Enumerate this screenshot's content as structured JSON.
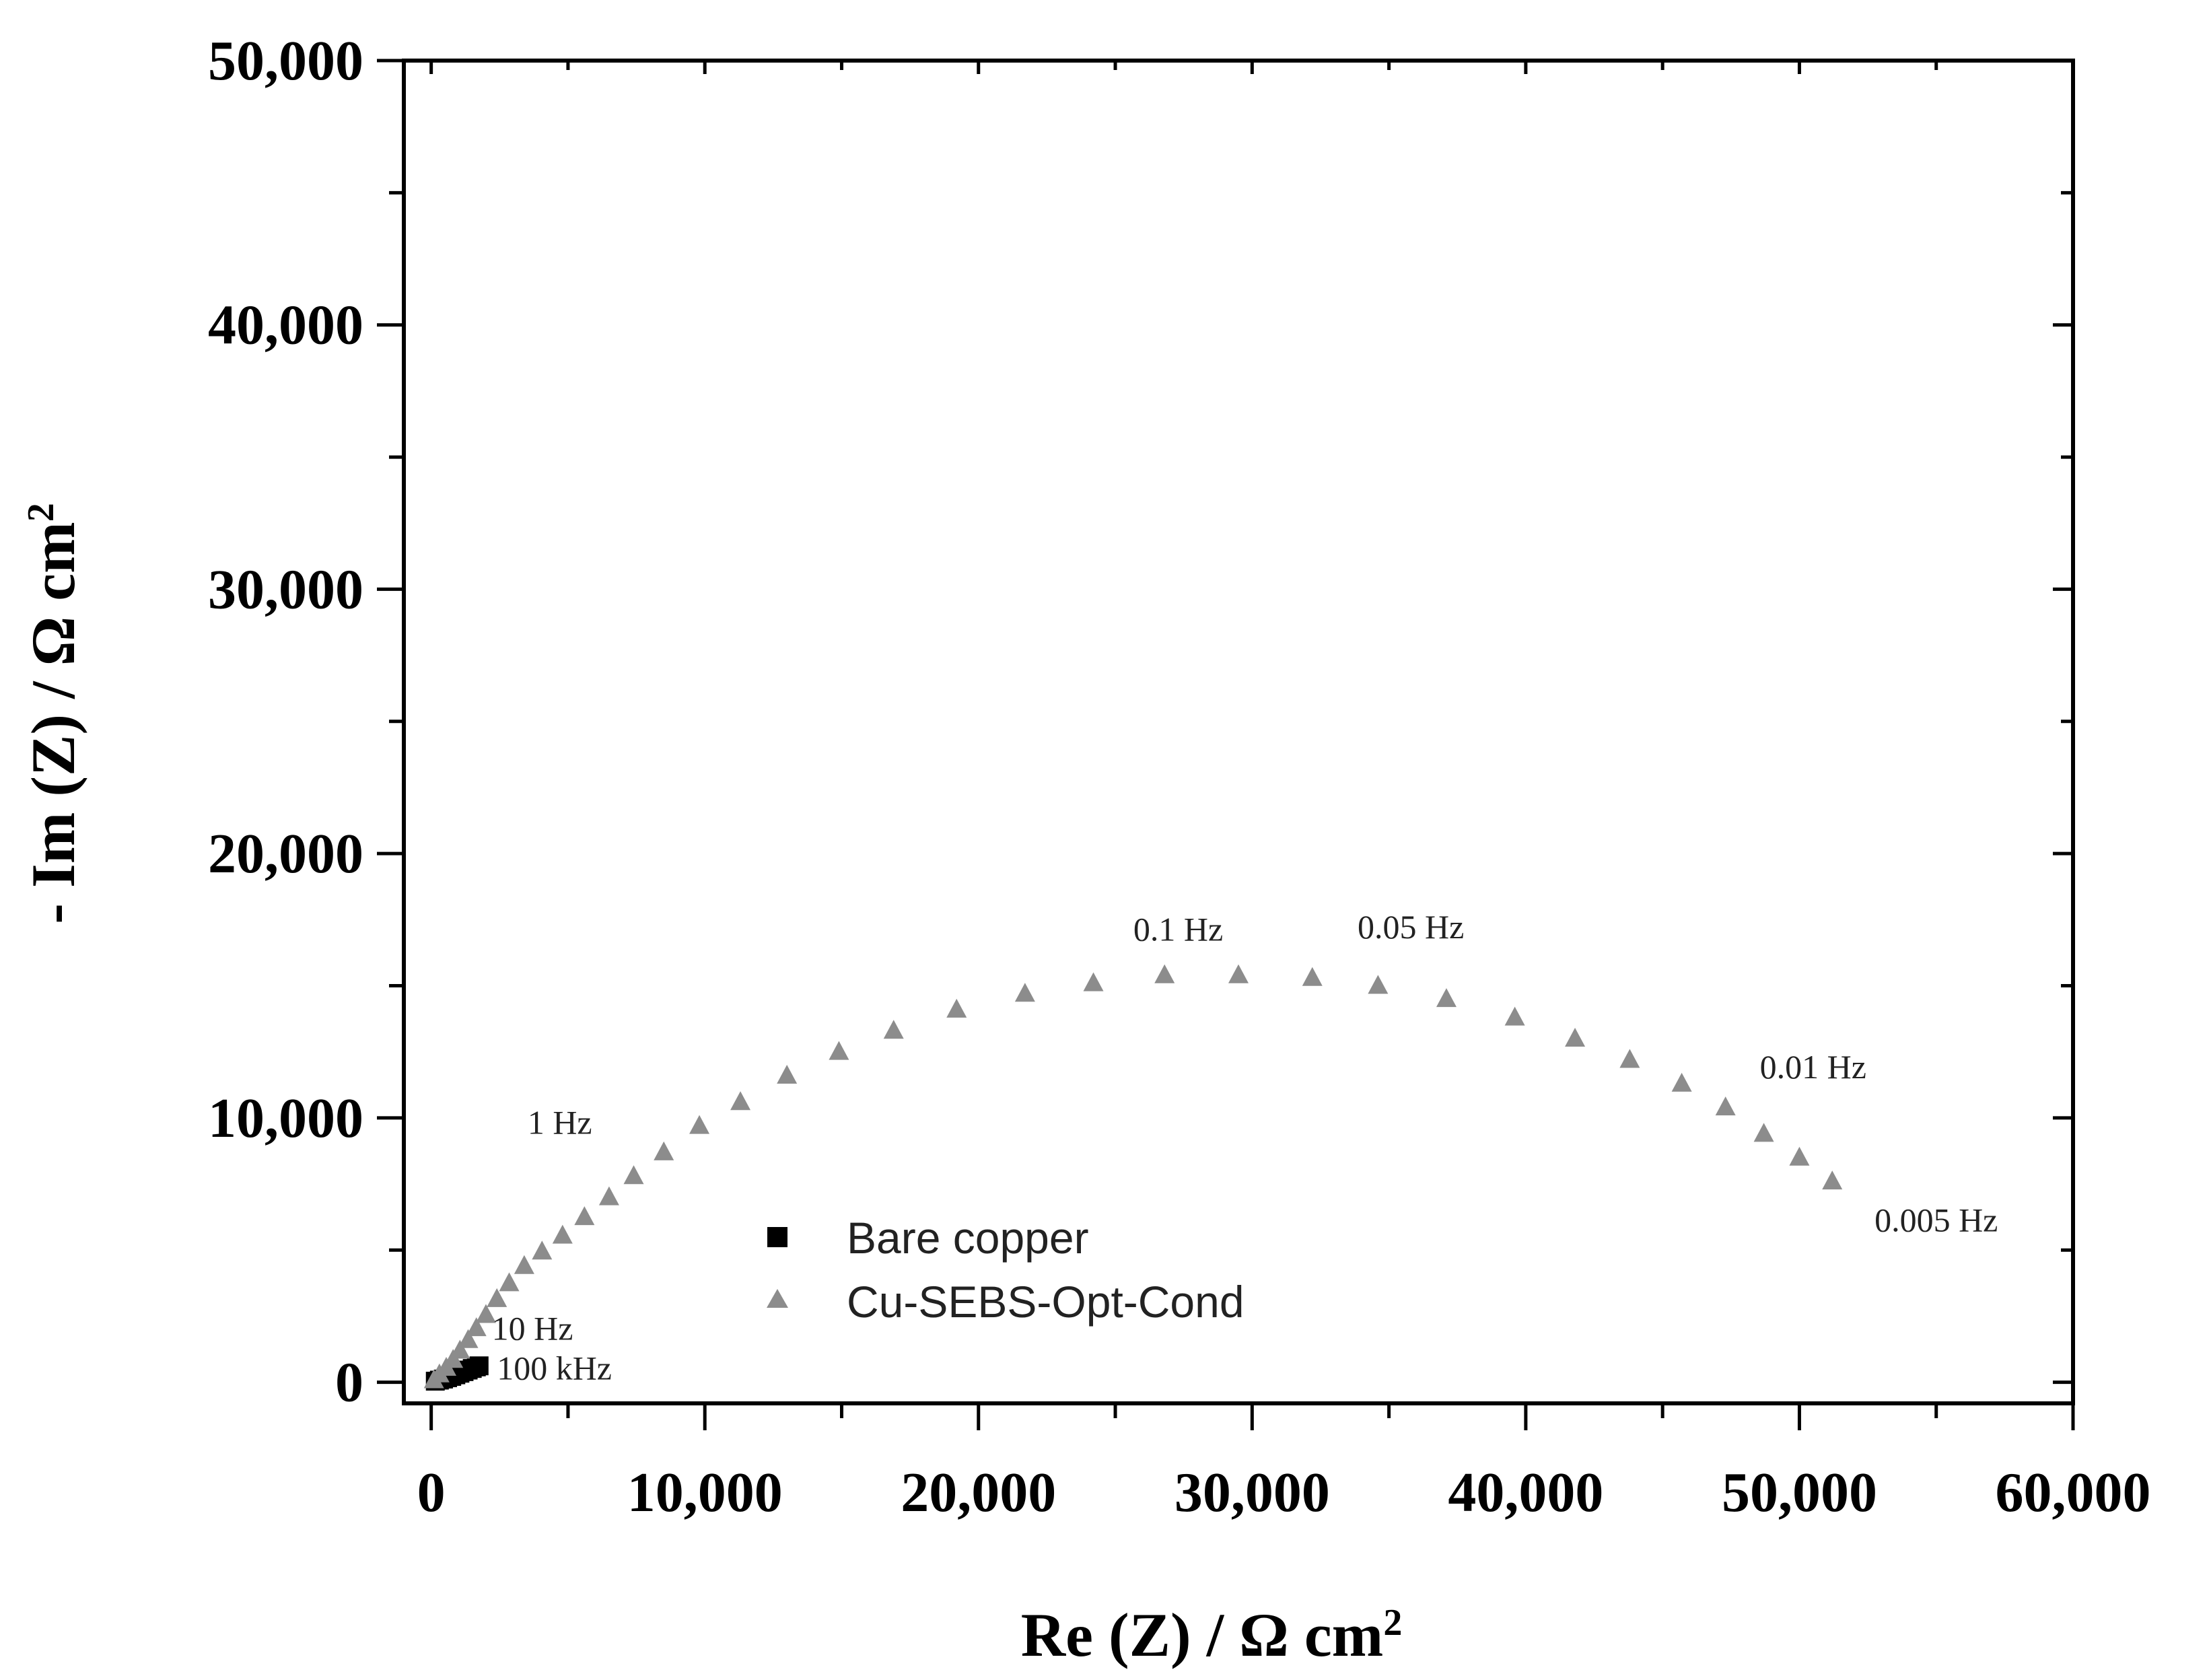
{
  "chart_data": {
    "type": "scatter",
    "title": "",
    "xlabel": "Re (Z) / Ω cm",
    "xlabel_sup": "2",
    "ylabel": "- Im (Z) / Ω cm",
    "ylabel_sup": "2",
    "xlim": [
      -1000,
      60000
    ],
    "ylim": [
      -800,
      50000
    ],
    "xticks": [
      0,
      10000,
      20000,
      30000,
      40000,
      50000,
      60000
    ],
    "xtick_labels": [
      "0",
      "10,000",
      "20,000",
      "30,000",
      "40,000",
      "50,000",
      "60,000"
    ],
    "yticks": [
      0,
      10000,
      20000,
      30000,
      40000,
      50000
    ],
    "ytick_labels": [
      "0",
      "10,000",
      "20,000",
      "30,000",
      "40,000",
      "50,000"
    ],
    "grid": false,
    "legend_position": "lower-center",
    "series": [
      {
        "name": "Bare copper",
        "marker": "square",
        "color": "#000000",
        "x": [
          150,
          300,
          450,
          600,
          750,
          900,
          1050,
          1200,
          1350,
          1500,
          1650,
          1750
        ],
        "y": [
          40,
          80,
          120,
          170,
          220,
          280,
          340,
          400,
          460,
          520,
          580,
          620
        ]
      },
      {
        "name": "Cu-SEBS-Opt-Cond",
        "marker": "triangle",
        "color": "#8c8c8c",
        "x": [
          100,
          300,
          550,
          800,
          1050,
          1350,
          1650,
          2000,
          2400,
          2850,
          3400,
          4050,
          4800,
          5600,
          6500,
          7400,
          8500,
          9800,
          11300,
          13000,
          14900,
          16900,
          19200,
          21700,
          24200,
          26800,
          29500,
          32200,
          34600,
          37100,
          39600,
          41800,
          43800,
          45700,
          47300,
          48700,
          50000,
          51200
        ],
        "y": [
          80,
          300,
          550,
          850,
          1200,
          1600,
          2050,
          2550,
          3150,
          3750,
          4400,
          4950,
          5550,
          6250,
          7000,
          7800,
          8700,
          9700,
          10600,
          11600,
          12500,
          13300,
          14100,
          14700,
          15100,
          15400,
          15400,
          15300,
          15000,
          14500,
          13800,
          13000,
          12200,
          11300,
          10400,
          9400,
          8500,
          7600
        ]
      }
    ],
    "annotations": [
      {
        "text": "0.1 Hz",
        "x": 27300,
        "y": 16700
      },
      {
        "text": "0.05 Hz",
        "x": 35800,
        "y": 16800
      },
      {
        "text": "0.01 Hz",
        "x": 50500,
        "y": 11500
      },
      {
        "text": "0.005 Hz",
        "x": 55000,
        "y": 5700
      },
      {
        "text": "1 Hz",
        "x": 4700,
        "y": 9400
      },
      {
        "text": "10 Hz",
        "x": 3700,
        "y": 1600
      },
      {
        "text": "100 kHz",
        "x": 4500,
        "y": 100
      }
    ]
  }
}
